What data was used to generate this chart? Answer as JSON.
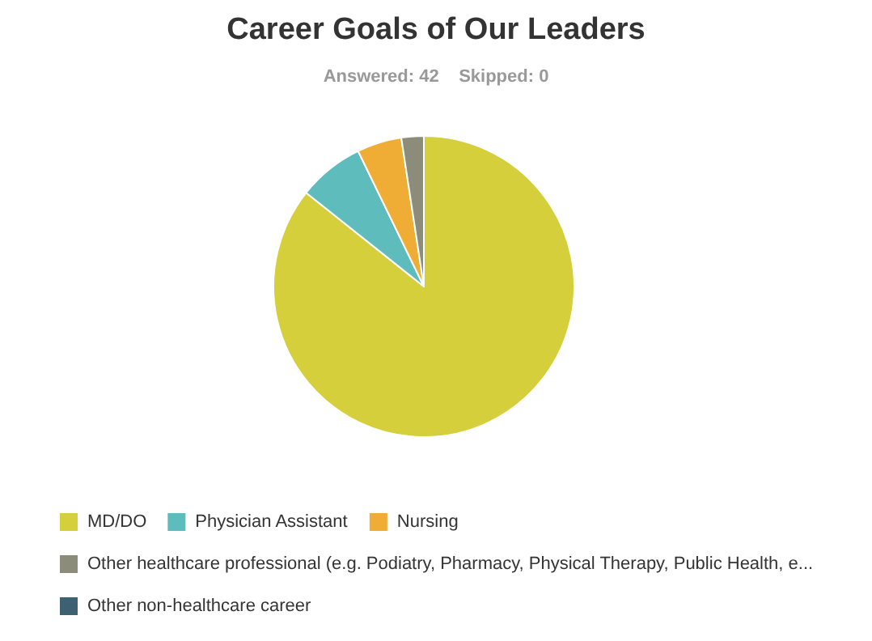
{
  "chart_data": {
    "type": "pie",
    "title": "Career Goals of Our Leaders",
    "subtitle": "Answered: 42    Skipped: 0",
    "categories": [
      "MD/DO",
      "Physician Assistant",
      "Nursing",
      "Other healthcare professional (e.g. Podiatry, Pharmacy, Physical Therapy, Public Health, e...",
      "Other non-healthcare career"
    ],
    "values": [
      85.7,
      7.1,
      4.8,
      2.4,
      0
    ],
    "colors": [
      "#d4cf3a",
      "#5fbcbd",
      "#f0ad36",
      "#8c8c7a",
      "#3d6073"
    ],
    "legend": "bottom"
  }
}
